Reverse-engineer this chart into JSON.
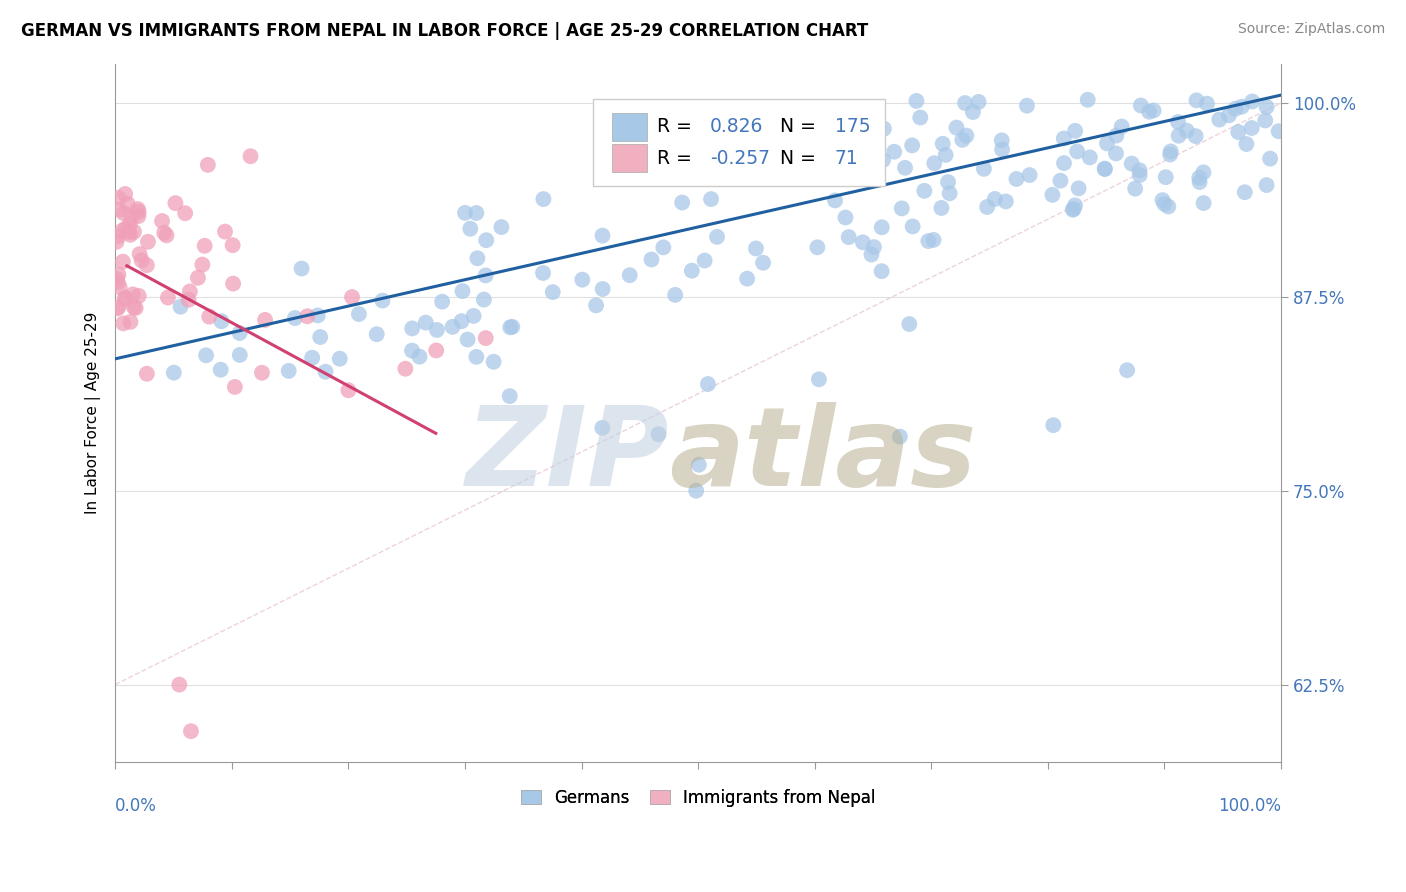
{
  "title": "GERMAN VS IMMIGRANTS FROM NEPAL IN LABOR FORCE | AGE 25-29 CORRELATION CHART",
  "source": "Source: ZipAtlas.com",
  "ylabel": "In Labor Force | Age 25-29",
  "yaxis_labels": [
    "62.5%",
    "75.0%",
    "87.5%",
    "100.0%"
  ],
  "yaxis_values": [
    0.625,
    0.75,
    0.875,
    1.0
  ],
  "xlim": [
    0.0,
    1.0
  ],
  "ylim": [
    0.575,
    1.025
  ],
  "legend_R1": "0.826",
  "legend_N1": "175",
  "legend_R2": "-0.257",
  "legend_N2": "71",
  "blue_scatter_color": "#a8c8e8",
  "pink_scatter_color": "#f0a0b8",
  "blue_line_color": "#2060a0",
  "pink_line_color": "#d04070",
  "blue_legend_color": "#a8c8e8",
  "pink_legend_color": "#f0b0c0",
  "axis_color": "#4477bb",
  "background": "#ffffff",
  "grid_color": "#cccccc",
  "watermark_zip_color": "#c0d0e0",
  "watermark_atlas_color": "#b8b090"
}
